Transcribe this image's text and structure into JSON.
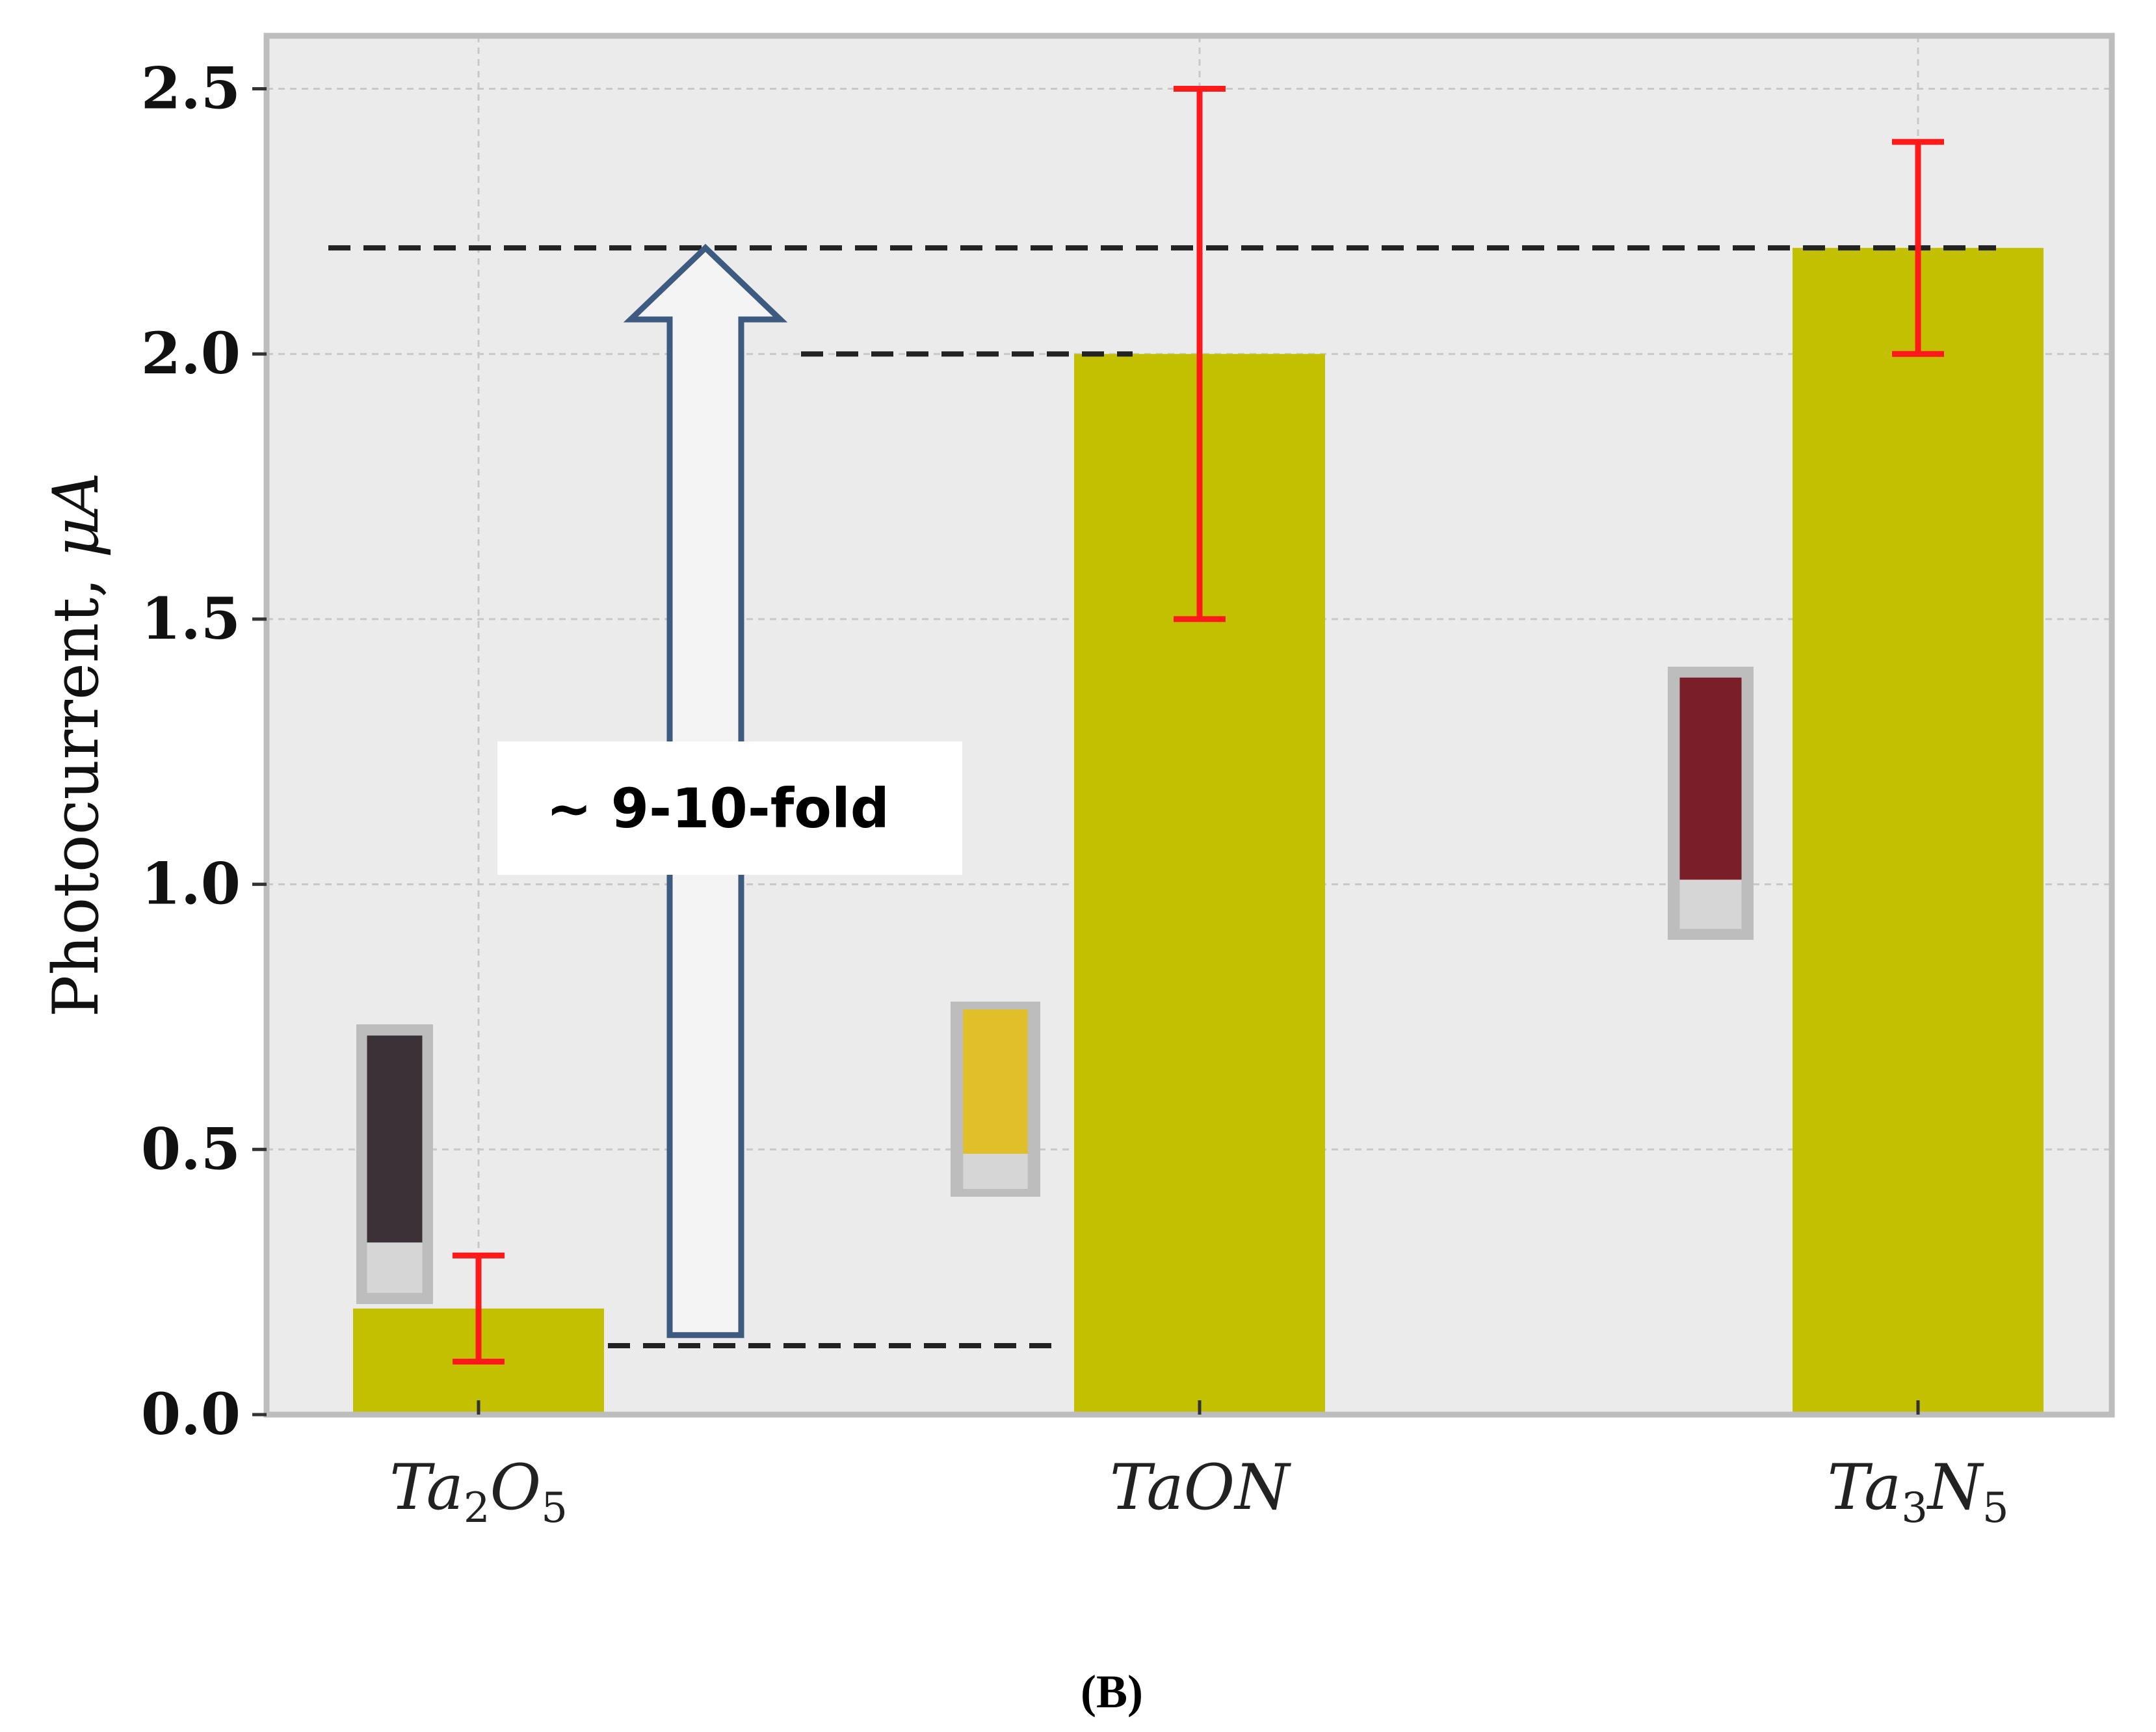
{
  "chart_data": {
    "type": "bar",
    "categories": [
      "Ta2O5",
      "TaON",
      "Ta3N5"
    ],
    "category_display": [
      {
        "base": "Ta",
        "sub1": "2",
        "mid": "O",
        "sub2": "5"
      },
      {
        "base": "TaON",
        "sub1": "",
        "mid": "",
        "sub2": ""
      },
      {
        "base": "Ta",
        "sub1": "3",
        "mid": "N",
        "sub2": "5"
      }
    ],
    "values": [
      0.2,
      2.0,
      2.2
    ],
    "errors": [
      {
        "low": 0.1,
        "high": 0.3
      },
      {
        "low": 1.5,
        "high": 2.5
      },
      {
        "low": 2.0,
        "high": 2.4
      }
    ],
    "ylabel_prefix": "Photocurrent, ",
    "ylabel_unit": "μA",
    "ylim": [
      0,
      2.6
    ],
    "yticks": [
      "0.0",
      "0.5",
      "1.0",
      "1.5",
      "2.0",
      "2.5"
    ],
    "grid": true,
    "colors": {
      "bar": "#c2c000",
      "error": "#ff1a1a",
      "plot_bg": "#ebebeb",
      "frame": "#bdbdbd",
      "arrow": "#3d5a80",
      "dash": "#222222"
    },
    "reference_lines": [
      2.2,
      2.0,
      0.13
    ],
    "annotation": {
      "text": "~ 9-10-fold",
      "arrow_from": 0.15,
      "arrow_to": 2.2
    },
    "sample_photos": [
      "grey-strip-icon",
      "yellow-strip-icon",
      "dark-red-strip-icon"
    ],
    "panel_label": "(B)"
  }
}
